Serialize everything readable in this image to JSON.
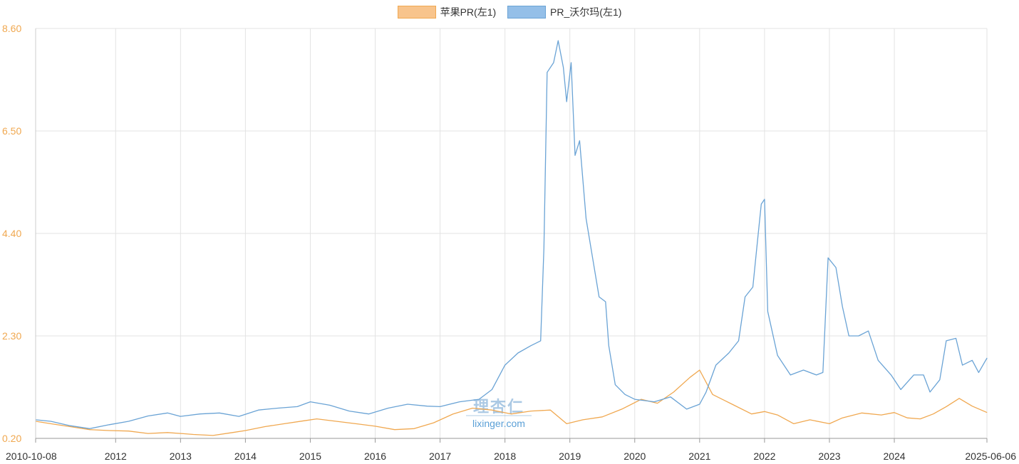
{
  "legend": [
    {
      "label": "苹果PR(左1)",
      "color": "#f8c48c",
      "border": "#f0a850"
    },
    {
      "label": "PR_沃尔玛(左1)",
      "color": "#94bfe8",
      "border": "#6aa3d5"
    }
  ],
  "watermark": {
    "cn": "理杏仁",
    "en": "lixinger.com"
  },
  "chart_data": {
    "type": "line",
    "ylim": [
      0.2,
      8.6
    ],
    "y_ticks": [
      "8.60",
      "6.50",
      "4.40",
      "2.30",
      "0.20"
    ],
    "x_ticks": [
      "2010-10-08",
      "2012",
      "2013",
      "2014",
      "2015",
      "2016",
      "2017",
      "2018",
      "2019",
      "2020",
      "2021",
      "2022",
      "2023",
      "2024",
      "2025-06-06"
    ],
    "grid": true,
    "legend_position": "top-center",
    "series": [
      {
        "name": "苹果PR(左1)",
        "color": "#f0a850",
        "points": [
          [
            2010.77,
            0.55
          ],
          [
            2011.0,
            0.5
          ],
          [
            2011.3,
            0.44
          ],
          [
            2011.6,
            0.38
          ],
          [
            2011.9,
            0.36
          ],
          [
            2012.2,
            0.35
          ],
          [
            2012.5,
            0.3
          ],
          [
            2012.8,
            0.32
          ],
          [
            2013.0,
            0.3
          ],
          [
            2013.2,
            0.28
          ],
          [
            2013.5,
            0.26
          ],
          [
            2013.8,
            0.32
          ],
          [
            2014.0,
            0.36
          ],
          [
            2014.3,
            0.44
          ],
          [
            2014.6,
            0.5
          ],
          [
            2014.9,
            0.56
          ],
          [
            2015.1,
            0.6
          ],
          [
            2015.4,
            0.55
          ],
          [
            2015.7,
            0.5
          ],
          [
            2016.0,
            0.45
          ],
          [
            2016.3,
            0.38
          ],
          [
            2016.6,
            0.4
          ],
          [
            2016.9,
            0.52
          ],
          [
            2017.2,
            0.7
          ],
          [
            2017.5,
            0.82
          ],
          [
            2017.8,
            0.78
          ],
          [
            2018.1,
            0.7
          ],
          [
            2018.4,
            0.76
          ],
          [
            2018.7,
            0.78
          ],
          [
            2018.95,
            0.5
          ],
          [
            2019.2,
            0.58
          ],
          [
            2019.5,
            0.64
          ],
          [
            2019.8,
            0.8
          ],
          [
            2020.1,
            1.0
          ],
          [
            2020.35,
            0.92
          ],
          [
            2020.6,
            1.15
          ],
          [
            2020.85,
            1.45
          ],
          [
            2021.0,
            1.6
          ],
          [
            2021.2,
            1.1
          ],
          [
            2021.5,
            0.9
          ],
          [
            2021.8,
            0.7
          ],
          [
            2022.0,
            0.75
          ],
          [
            2022.2,
            0.68
          ],
          [
            2022.45,
            0.5
          ],
          [
            2022.7,
            0.58
          ],
          [
            2023.0,
            0.5
          ],
          [
            2023.2,
            0.62
          ],
          [
            2023.5,
            0.72
          ],
          [
            2023.8,
            0.68
          ],
          [
            2024.0,
            0.73
          ],
          [
            2024.2,
            0.62
          ],
          [
            2024.4,
            0.6
          ],
          [
            2024.6,
            0.7
          ],
          [
            2024.8,
            0.85
          ],
          [
            2025.0,
            1.02
          ],
          [
            2025.2,
            0.86
          ],
          [
            2025.43,
            0.73
          ]
        ]
      },
      {
        "name": "PR_沃尔玛(左1)",
        "color": "#6aa3d5",
        "points": [
          [
            2010.77,
            0.58
          ],
          [
            2011.0,
            0.55
          ],
          [
            2011.3,
            0.46
          ],
          [
            2011.6,
            0.4
          ],
          [
            2011.9,
            0.48
          ],
          [
            2012.2,
            0.55
          ],
          [
            2012.5,
            0.66
          ],
          [
            2012.8,
            0.72
          ],
          [
            2013.0,
            0.65
          ],
          [
            2013.3,
            0.7
          ],
          [
            2013.6,
            0.72
          ],
          [
            2013.9,
            0.65
          ],
          [
            2014.2,
            0.78
          ],
          [
            2014.5,
            0.82
          ],
          [
            2014.8,
            0.85
          ],
          [
            2015.0,
            0.95
          ],
          [
            2015.3,
            0.88
          ],
          [
            2015.6,
            0.76
          ],
          [
            2015.9,
            0.7
          ],
          [
            2016.2,
            0.82
          ],
          [
            2016.5,
            0.9
          ],
          [
            2016.8,
            0.86
          ],
          [
            2017.0,
            0.85
          ],
          [
            2017.3,
            0.95
          ],
          [
            2017.6,
            1.0
          ],
          [
            2017.8,
            1.2
          ],
          [
            2018.0,
            1.7
          ],
          [
            2018.2,
            1.95
          ],
          [
            2018.4,
            2.1
          ],
          [
            2018.55,
            2.2
          ],
          [
            2018.6,
            4.1
          ],
          [
            2018.65,
            7.7
          ],
          [
            2018.75,
            7.9
          ],
          [
            2018.82,
            8.35
          ],
          [
            2018.9,
            7.8
          ],
          [
            2018.95,
            7.1
          ],
          [
            2019.02,
            7.9
          ],
          [
            2019.08,
            6.0
          ],
          [
            2019.15,
            6.3
          ],
          [
            2019.25,
            4.7
          ],
          [
            2019.35,
            3.9
          ],
          [
            2019.45,
            3.1
          ],
          [
            2019.55,
            3.0
          ],
          [
            2019.6,
            2.1
          ],
          [
            2019.7,
            1.3
          ],
          [
            2019.85,
            1.1
          ],
          [
            2020.0,
            1.0
          ],
          [
            2020.3,
            0.95
          ],
          [
            2020.55,
            1.05
          ],
          [
            2020.8,
            0.8
          ],
          [
            2021.0,
            0.9
          ],
          [
            2021.1,
            1.15
          ],
          [
            2021.25,
            1.7
          ],
          [
            2021.45,
            1.95
          ],
          [
            2021.6,
            2.2
          ],
          [
            2021.7,
            3.1
          ],
          [
            2021.82,
            3.3
          ],
          [
            2021.88,
            4.1
          ],
          [
            2021.95,
            5.0
          ],
          [
            2022.0,
            5.1
          ],
          [
            2022.05,
            2.8
          ],
          [
            2022.2,
            1.9
          ],
          [
            2022.4,
            1.5
          ],
          [
            2022.6,
            1.6
          ],
          [
            2022.8,
            1.5
          ],
          [
            2022.9,
            1.55
          ],
          [
            2022.98,
            3.9
          ],
          [
            2023.1,
            3.7
          ],
          [
            2023.2,
            2.9
          ],
          [
            2023.3,
            2.3
          ],
          [
            2023.45,
            2.3
          ],
          [
            2023.6,
            2.4
          ],
          [
            2023.75,
            1.8
          ],
          [
            2023.95,
            1.5
          ],
          [
            2024.1,
            1.2
          ],
          [
            2024.3,
            1.5
          ],
          [
            2024.45,
            1.5
          ],
          [
            2024.55,
            1.15
          ],
          [
            2024.7,
            1.4
          ],
          [
            2024.8,
            2.2
          ],
          [
            2024.95,
            2.25
          ],
          [
            2025.05,
            1.7
          ],
          [
            2025.2,
            1.8
          ],
          [
            2025.3,
            1.55
          ],
          [
            2025.43,
            1.85
          ]
        ]
      }
    ]
  }
}
